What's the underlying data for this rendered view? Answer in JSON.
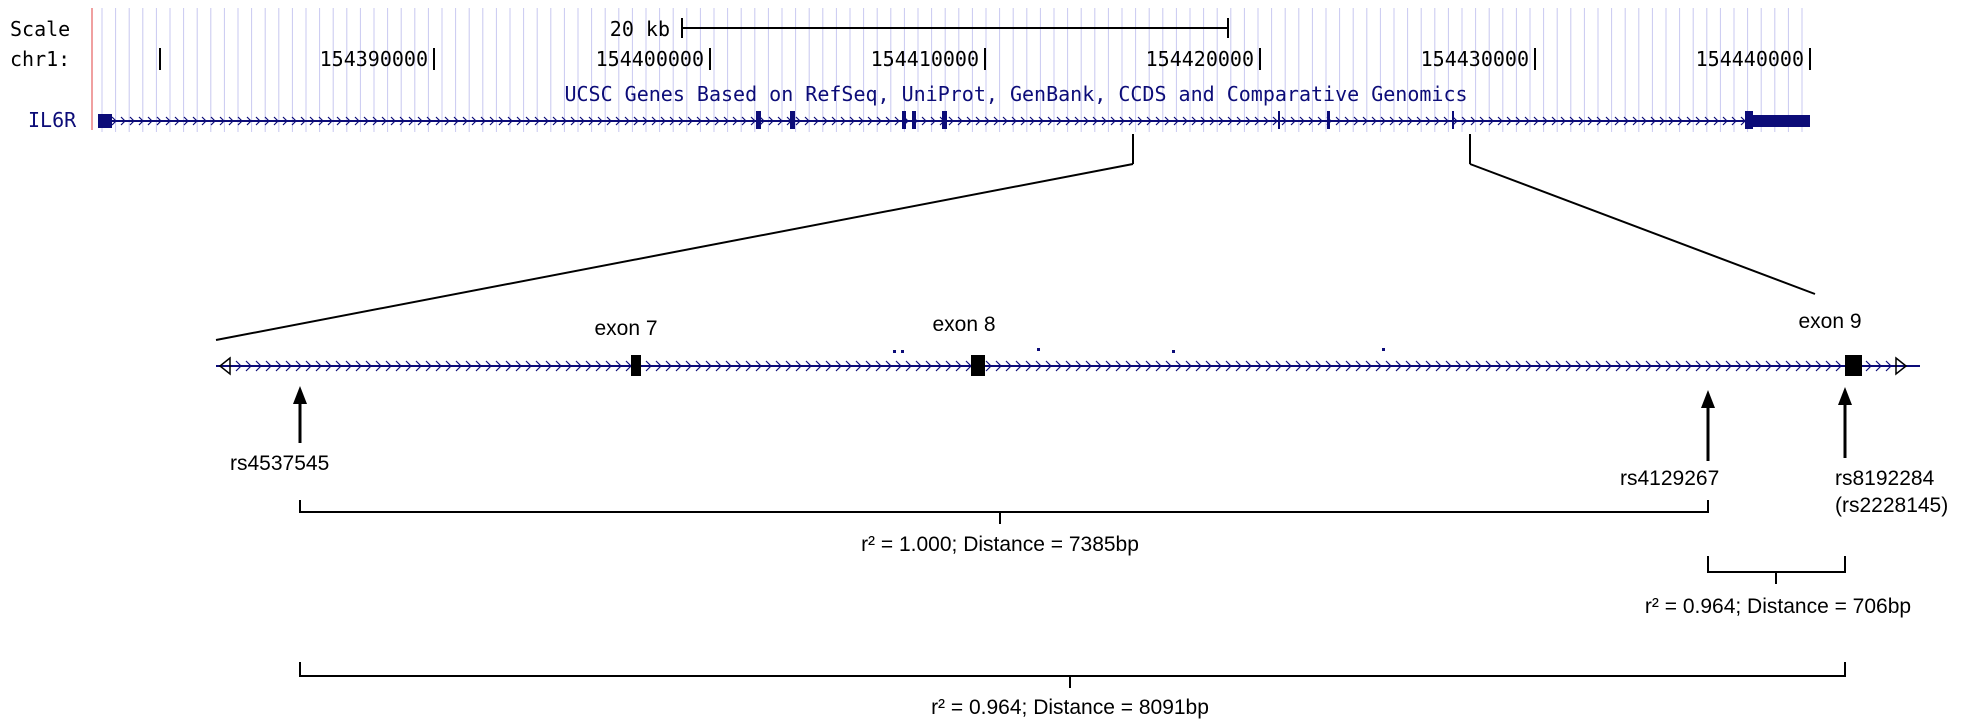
{
  "browser_track": {
    "scale_label": "Scale",
    "scale_value": "20 kb",
    "chrom_label": "chr1:",
    "positions": [
      "154390000",
      "154400000",
      "154410000",
      "154420000",
      "154430000",
      "154440000"
    ],
    "track_title": "UCSC Genes Based on RefSeq, UniProt, GenBank, CCDS and Comparative Genomics",
    "gene_name": "IL6R"
  },
  "zoom": {
    "exon_labels": [
      "exon 7",
      "exon 8",
      "exon 9"
    ],
    "snps": [
      {
        "name": "rs4537545"
      },
      {
        "name": "rs4129267"
      },
      {
        "name": "rs8192284",
        "alias": "(rs2228145)"
      }
    ],
    "ld_brackets": [
      {
        "label": "r² = 1.000; Distance = 7385bp"
      },
      {
        "label": "r² = 0.964; Distance = 706bp"
      },
      {
        "label": "r² = 0.964; Distance = 8091bp"
      }
    ]
  },
  "colors": {
    "gene": "#0c0c78",
    "track_text": "#0c0c78",
    "grid": "#c8c8f0",
    "divider": "#f0a0a0",
    "black": "#000000"
  }
}
